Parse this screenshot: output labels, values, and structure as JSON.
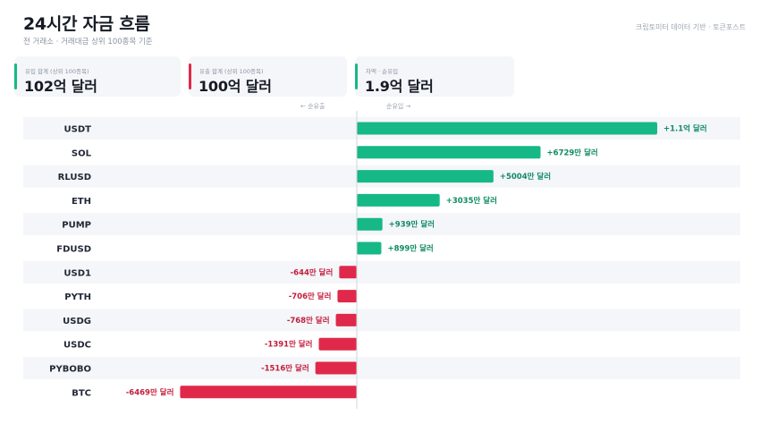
{
  "header": {
    "title": "24시간 자금 흐름",
    "subtitle": "전 거래소 · 거래대금 상위 100종목 기준",
    "source": "크립토미터 데이터 기반 · 토큰포스트"
  },
  "summary": {
    "inflow": {
      "label": "유입 합계 (상위 100종목)",
      "value": "102억 달러",
      "color": "#16b886"
    },
    "outflow": {
      "label": "유출 합계 (상위 100종목)",
      "value": "100억 달러",
      "color": "#e0294a"
    },
    "net": {
      "label": "차액 · 순유입",
      "value": "1.9억 달러",
      "color": "#16b886"
    }
  },
  "axis": {
    "left_direction": "← 순유출",
    "right_direction": "순유입 →"
  },
  "colors": {
    "positive": "#16b886",
    "negative": "#e0294a",
    "row_band": "#f4f6f9",
    "zero_line": "#cfd4dc"
  },
  "chart_data": {
    "type": "bar",
    "orientation": "horizontal",
    "unit": "만 달러",
    "categories": [
      "USDT",
      "SOL",
      "RLUSD",
      "ETH",
      "PUMP",
      "FDUSD",
      "USD1",
      "PYTH",
      "USDG",
      "USDC",
      "PYBOBO",
      "BTC"
    ],
    "values": [
      11000,
      6729,
      5004,
      3035,
      939,
      899,
      -644,
      -706,
      -768,
      -1391,
      -1516,
      -6469
    ],
    "value_labels": [
      "+1.1억 달러",
      "+6729만 달러",
      "+5004만 달러",
      "+3035만 달러",
      "+939만 달러",
      "+899만 달러",
      "-644만 달러",
      "-706만 달러",
      "-768만 달러",
      "-1391만 달러",
      "-1516만 달러",
      "-6469만 달러"
    ]
  }
}
